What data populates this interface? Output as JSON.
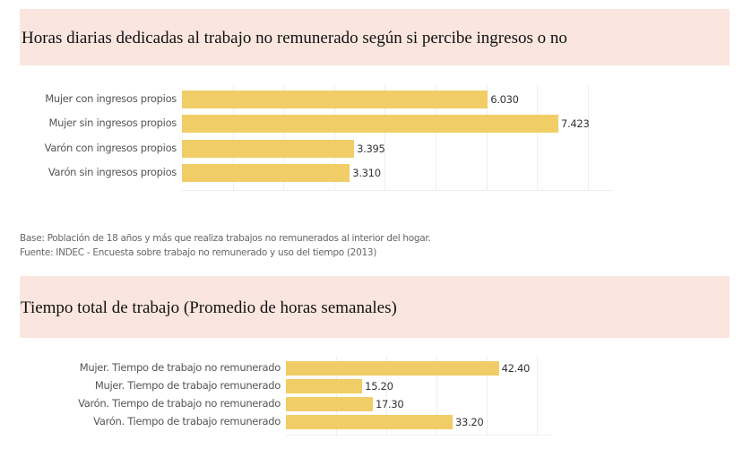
{
  "chart_data": [
    {
      "type": "bar",
      "orientation": "horizontal",
      "title": "Horas diarias dedicadas al trabajo no remunerado según si percibe ingresos o no",
      "categories": [
        "Mujer con ingresos propios",
        "Mujer sin ingresos propios",
        "Varón con ingresos propios",
        "Varón sin ingresos propios"
      ],
      "values": [
        6.03,
        7.423,
        3.395,
        3.31
      ],
      "value_labels": [
        "6.030",
        "7.423",
        "3.395",
        "3.310"
      ],
      "xlim": [
        0,
        8.5
      ],
      "grid_step": 1,
      "color": "#f0cd66",
      "notes": [
        "Base: Población de 18 años y más que realiza trabajos no remunerados al interior del hogar.",
        "Fuente:  INDEC - Encuesta sobre trabajo no remunerado y uso del tiempo (2013)"
      ]
    },
    {
      "type": "bar",
      "orientation": "horizontal",
      "title": "Tiempo total de trabajo (Promedio de horas semanales)",
      "categories": [
        "Mujer. Tiempo de trabajo no remunerado",
        "Mujer. Tiempo de trabajo remunerado",
        "Varón. Tiempo de trabajo no remunerado",
        "Varón. Tiempo de trabajo remunerado"
      ],
      "values": [
        42.4,
        15.2,
        17.3,
        33.2
      ],
      "value_labels": [
        "42.40",
        "15.20",
        "17.30",
        "33.20"
      ],
      "xlim": [
        0,
        53
      ],
      "grid_step": 10,
      "color": "#f0cd66"
    }
  ]
}
